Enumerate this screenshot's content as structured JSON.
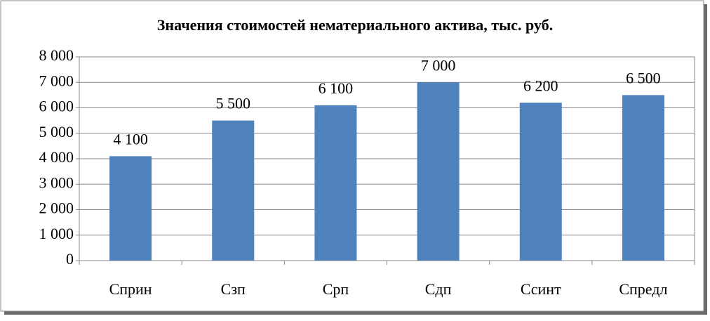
{
  "chart_data": {
    "type": "bar",
    "title": "Значения стоимостей нематериального актива, тыс. руб.",
    "categories": [
      "Сприн",
      "Сзп",
      "Срп",
      "Сдп",
      "Ссинт",
      "Спредл"
    ],
    "values": [
      4100,
      5500,
      6100,
      7000,
      6200,
      6500
    ],
    "value_labels": [
      "4 100",
      "5 500",
      "6 100",
      "7 000",
      "6 200",
      "6 500"
    ],
    "color": "#4f81bd",
    "ylim": [
      0,
      8000
    ],
    "yticks": [
      0,
      {
        "value": 1000,
        "label": "1 000"
      },
      {
        "value": 2000,
        "label": "2 000"
      },
      {
        "value": 3000,
        "label": "3 000"
      },
      {
        "value": 4000,
        "label": "4 000"
      },
      {
        "value": 5000,
        "label": "5 000"
      },
      {
        "value": 6000,
        "label": "6 000"
      },
      {
        "value": 7000,
        "label": "7 000"
      },
      {
        "value": 8000,
        "label": "8 000"
      }
    ],
    "grid": true
  }
}
